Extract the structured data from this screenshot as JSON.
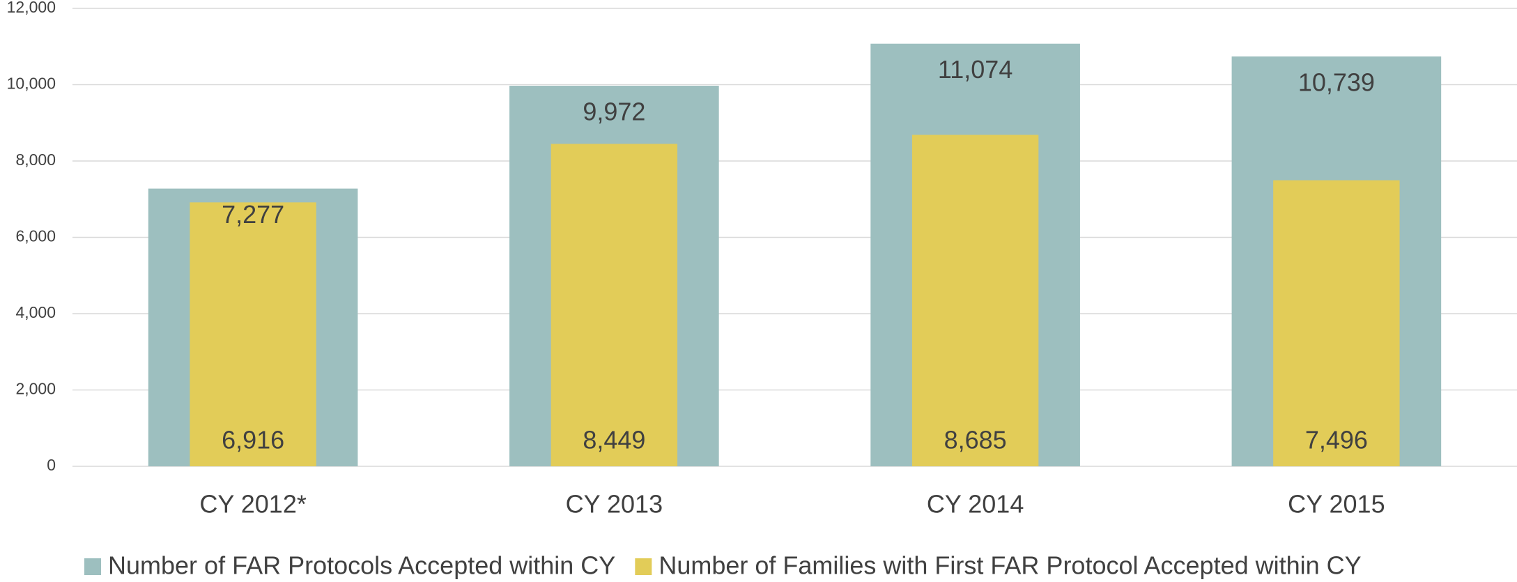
{
  "chart_data": {
    "type": "bar",
    "categories": [
      "CY 2012*",
      "CY 2013",
      "CY 2014",
      "CY 2015"
    ],
    "series": [
      {
        "name": "Number of FAR Protocols Accepted within CY",
        "color": "#9dbfbf",
        "values": [
          7277,
          9972,
          11074,
          10739
        ],
        "value_labels": [
          "7,277",
          "9,972",
          "11,074",
          "10,739"
        ]
      },
      {
        "name": "Number of Families with First FAR Protocol Accepted within CY",
        "color": "#e2cc58",
        "values": [
          6916,
          8449,
          8685,
          7496
        ],
        "value_labels": [
          "6,916",
          "8,449",
          "8,685",
          "7,496"
        ]
      }
    ],
    "ylim": [
      0,
      12000
    ],
    "yticks": [
      0,
      {
        "value": 2000,
        "label": "2,000"
      },
      {
        "value": 4000,
        "label": "4,000"
      },
      {
        "value": 6000,
        "label": "6,000"
      },
      {
        "value": 8000,
        "label": "8,000"
      },
      {
        "value": 10000,
        "label": "10,000"
      },
      {
        "value": 12000,
        "label": "12,000"
      }
    ],
    "grid": true,
    "legend": "bottom"
  }
}
